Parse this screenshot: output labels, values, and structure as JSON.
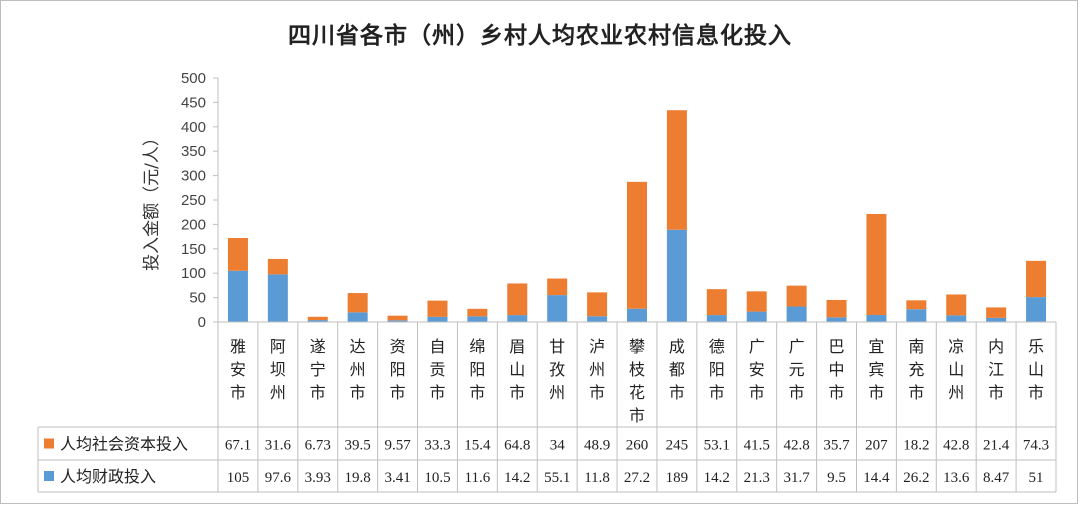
{
  "chart_data": {
    "type": "bar",
    "stacked": true,
    "title": "四川省各市（州）乡村人均农业农村信息化投入",
    "ylabel": "投入金额（元/人）",
    "ylim": [
      0,
      500
    ],
    "yticks": [
      0,
      50,
      100,
      150,
      200,
      250,
      300,
      350,
      400,
      450,
      500
    ],
    "grid": false,
    "legend_position": "data-table",
    "categories": [
      "雅安市",
      "阿坝州",
      "遂宁市",
      "达州市",
      "资阳市",
      "自贡市",
      "绵阳市",
      "眉山市",
      "甘孜州",
      "泸州市",
      "攀枝花市",
      "成都市",
      "德阳市",
      "广安市",
      "广元市",
      "巴中市",
      "宜宾市",
      "南充市",
      "凉山州",
      "内江市",
      "乐山市"
    ],
    "series": [
      {
        "name": "人均财政投入",
        "color": "#5B9BD5",
        "values": [
          105,
          97.6,
          3.93,
          19.8,
          3.41,
          10.5,
          11.6,
          14.2,
          55.1,
          11.8,
          27.2,
          189,
          14.2,
          21.3,
          31.7,
          9.5,
          14.4,
          26.2,
          13.6,
          8.47,
          51
        ]
      },
      {
        "name": "人均社会资本投入",
        "color": "#ED7D31",
        "values": [
          67.1,
          31.6,
          6.73,
          39.5,
          9.57,
          33.3,
          15.4,
          64.8,
          34,
          48.9,
          260,
          245,
          53.1,
          41.5,
          42.8,
          35.7,
          207,
          18.2,
          42.8,
          21.4,
          74.3
        ]
      }
    ],
    "table_order": [
      "人均社会资本投入",
      "人均财政投入"
    ]
  }
}
